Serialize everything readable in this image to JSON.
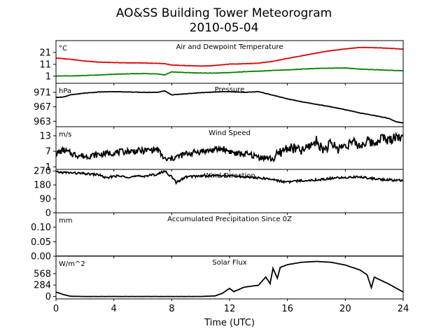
{
  "figure": {
    "title": "AO&SS Building Tower Meteorogram",
    "subtitle": "2010-05-04",
    "xlabel": "Time (UTC)",
    "x_ticks": [
      "0",
      "4",
      "8",
      "12",
      "16",
      "20",
      "24"
    ]
  },
  "chart_data": [
    {
      "type": "line",
      "title": "Air and Dewpoint Temperature",
      "unit": "°C",
      "x_range": [
        0,
        24
      ],
      "ylim": [
        -5,
        31
      ],
      "y_ticks": [
        1,
        11,
        21
      ],
      "series": [
        {
          "color": "#e00000",
          "x": [
            0,
            1,
            2,
            3,
            4,
            5,
            6,
            7,
            7.5,
            8,
            9,
            10,
            11,
            12,
            13,
            14,
            15,
            16,
            17,
            18,
            19,
            20,
            21,
            22,
            23,
            24
          ],
          "y": [
            16.3,
            15.2,
            13.8,
            12.8,
            12.5,
            12.2,
            12.1,
            11.9,
            11.6,
            10.4,
            9.9,
            9.5,
            10.0,
            11.2,
            11.5,
            12.0,
            13.5,
            16.0,
            18.2,
            20.5,
            22.5,
            24.0,
            25.2,
            25.0,
            24.6,
            23.8
          ]
        },
        {
          "color": "#008000",
          "x": [
            0,
            1,
            2,
            3,
            4,
            5,
            6,
            7,
            7.5,
            8,
            9,
            10,
            11,
            12,
            13,
            14,
            15,
            16,
            17,
            18,
            19,
            20,
            21,
            22,
            23,
            24
          ],
          "y": [
            1.2,
            1.2,
            1.6,
            2.0,
            2.6,
            3.0,
            3.2,
            3.0,
            2.0,
            4.6,
            4.0,
            3.7,
            3.6,
            4.0,
            4.8,
            5.2,
            5.8,
            6.3,
            7.0,
            7.5,
            7.8,
            7.9,
            7.0,
            6.5,
            6.0,
            5.6
          ]
        }
      ]
    },
    {
      "type": "line",
      "title": "Pressure",
      "unit": "hPa",
      "x_range": [
        0,
        24
      ],
      "ylim": [
        961.5,
        973.5
      ],
      "y_ticks": [
        963,
        967,
        971
      ],
      "series": [
        {
          "color": "#000000",
          "x": [
            0,
            0.5,
            1,
            2,
            3,
            4,
            5,
            6,
            7,
            7.5,
            8,
            9,
            10,
            11,
            12,
            13,
            14,
            15,
            16,
            17,
            18,
            19,
            20,
            21,
            22,
            23,
            23.5,
            24
          ],
          "y": [
            969.6,
            969.7,
            970.3,
            970.8,
            971.1,
            971.2,
            971.1,
            971.0,
            971.0,
            971.4,
            970.3,
            970.6,
            970.9,
            971.1,
            971.2,
            971.0,
            971.2,
            970.2,
            969.2,
            968.4,
            967.7,
            967.0,
            966.2,
            965.3,
            964.6,
            963.8,
            962.9,
            962.5
          ]
        }
      ]
    },
    {
      "type": "line",
      "title": "Wind Speed",
      "unit": "m/s",
      "x_range": [
        0,
        24
      ],
      "ylim": [
        0,
        16.5
      ],
      "y_ticks": [
        1,
        7,
        13
      ],
      "series": [
        {
          "color": "#000000",
          "x": [
            0,
            0.5,
            1,
            1.5,
            2,
            3,
            4,
            5,
            6,
            7,
            7.3,
            7.6,
            8,
            9,
            10,
            11,
            11.5,
            12,
            12.5,
            13,
            13.5,
            14,
            14.5,
            15,
            15.5,
            16,
            16.5,
            17,
            17.5,
            18,
            18.5,
            19,
            19.5,
            20,
            20.5,
            21,
            21.5,
            22,
            22.5,
            23,
            23.5,
            24
          ],
          "y": [
            6.0,
            7.5,
            6.2,
            5.5,
            5.0,
            5.8,
            6.5,
            7.0,
            7.2,
            7.8,
            5.5,
            3.5,
            4.2,
            6.0,
            7.0,
            7.5,
            8.0,
            7.0,
            6.0,
            6.0,
            5.5,
            4.8,
            4.5,
            4.0,
            6.5,
            8.5,
            8.0,
            7.0,
            9.0,
            11.0,
            7.5,
            10.0,
            8.0,
            9.5,
            10.5,
            9.0,
            11.0,
            10.0,
            12.5,
            11.0,
            13.0,
            12.0
          ]
        }
      ]
    },
    {
      "type": "line",
      "title": "Wind Direction",
      "unit": "",
      "x_range": [
        0,
        24
      ],
      "ylim": [
        0,
        280
      ],
      "y_ticks": [
        0,
        90,
        180,
        270
      ],
      "series": [
        {
          "color": "#000000",
          "x": [
            0,
            1,
            2,
            3,
            3.5,
            4,
            5,
            6,
            7,
            7.5,
            8,
            8.3,
            9,
            10,
            11,
            12,
            13,
            14,
            15,
            15.5,
            16,
            17,
            18,
            19,
            20,
            21,
            22,
            23,
            24
          ],
          "y": [
            262,
            258,
            252,
            245,
            222,
            238,
            232,
            236,
            248,
            270,
            232,
            195,
            232,
            238,
            240,
            238,
            232,
            225,
            215,
            205,
            198,
            208,
            212,
            222,
            228,
            232,
            220,
            212,
            208
          ]
        }
      ]
    },
    {
      "type": "line",
      "title": "Accumulated Precipitation Since 0Z",
      "unit": "mm",
      "x_range": [
        0,
        24
      ],
      "ylim": [
        0,
        0.15
      ],
      "y_ticks": [
        0,
        0.05,
        0.1
      ],
      "y_tick_labels": [
        "0.00",
        "0.05",
        "0.10"
      ],
      "series": [
        {
          "color": "#000000",
          "x": [
            0,
            24
          ],
          "y": [
            0,
            0
          ]
        }
      ]
    },
    {
      "type": "line",
      "title": "Solar Flux",
      "unit": "W/m^2",
      "x_range": [
        0,
        24
      ],
      "ylim": [
        -60,
        1000
      ],
      "y_ticks": [
        0,
        284,
        568
      ],
      "series": [
        {
          "color": "#000000",
          "x": [
            0,
            0.5,
            1,
            2,
            4,
            6,
            8,
            10,
            11,
            11.5,
            12,
            12.3,
            13,
            14,
            14.5,
            14.8,
            15,
            15.3,
            15.5,
            16,
            17,
            18,
            19,
            20,
            21,
            21.5,
            21.8,
            22,
            23,
            24
          ],
          "y": [
            110,
            50,
            5,
            0,
            0,
            0,
            0,
            0,
            15,
            80,
            200,
            120,
            230,
            280,
            480,
            320,
            700,
            450,
            720,
            790,
            850,
            870,
            850,
            780,
            660,
            540,
            220,
            480,
            310,
            110
          ]
        }
      ]
    }
  ]
}
